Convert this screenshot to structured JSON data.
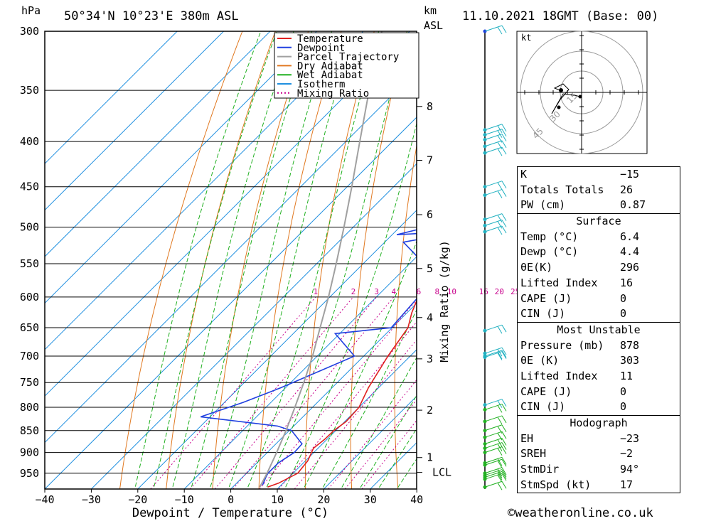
{
  "header": {
    "location": "50°34'N  10°23'E  380m  ASL",
    "datetime": "11.10.2021  18GMT  (Base: 00)",
    "left_unit": "hPa",
    "right_unit_top": "km",
    "right_unit_bottom": "ASL",
    "mixing_axis": "Mixing Ratio (g/kg)",
    "credit": "©weatheronline.co.uk"
  },
  "chart_data": {
    "type": "skewt",
    "xlabel": "Dewpoint / Temperature (°C)",
    "x_ticks": [
      -40,
      -30,
      -20,
      -10,
      0,
      10,
      20,
      30,
      40
    ],
    "x_tick_labels": [
      "−40",
      "−30",
      "−20",
      "−10",
      "0",
      "10",
      "20",
      "30",
      "40"
    ],
    "pressure_levels": [
      300,
      350,
      400,
      450,
      500,
      550,
      600,
      650,
      700,
      750,
      800,
      850,
      900,
      950
    ],
    "pressure_labels": [
      "300",
      "350",
      "400",
      "450",
      "500",
      "550",
      "600",
      "650",
      "700",
      "750",
      "800",
      "850",
      "900",
      "950"
    ],
    "height_km": [
      {
        "label": "8",
        "p": 365
      },
      {
        "label": "7",
        "p": 420
      },
      {
        "label": "6",
        "p": 484
      },
      {
        "label": "5",
        "p": 557
      },
      {
        "label": "4",
        "p": 633
      },
      {
        "label": "3",
        "p": 705
      },
      {
        "label": "2",
        "p": 806
      },
      {
        "label": "1",
        "p": 912
      },
      {
        "label": "LCL",
        "p": 948
      }
    ],
    "mixing_ratio_labels": [
      "1",
      "2",
      "3",
      "4",
      "6",
      "8",
      "10",
      "16",
      "20",
      "25"
    ],
    "legend": [
      {
        "name": "Temperature",
        "color": "#e02020",
        "dotted": false
      },
      {
        "name": "Dewpoint",
        "color": "#2040e0",
        "dotted": false
      },
      {
        "name": "Parcel Trajectory",
        "color": "#a0a0a0",
        "dotted": false
      },
      {
        "name": "Dry Adiabat",
        "color": "#e07820",
        "dotted": false
      },
      {
        "name": "Wet Adiabat",
        "color": "#20b020",
        "dotted": false
      },
      {
        "name": "Isotherm",
        "color": "#2090e0",
        "dotted": false
      },
      {
        "name": "Mixing Ratio",
        "color": "#c8008c",
        "dotted": true
      }
    ],
    "series": [
      {
        "name": "Temperature",
        "color": "#e02020",
        "points": [
          [
            985,
            7.5
          ],
          [
            975,
            9
          ],
          [
            950,
            11
          ],
          [
            920,
            10.5
          ],
          [
            890,
            9
          ],
          [
            870,
            9.5
          ],
          [
            850,
            9.6
          ],
          [
            830,
            10.3
          ],
          [
            800,
            10
          ],
          [
            760,
            7.8
          ],
          [
            700,
            5.2
          ],
          [
            650,
            3.4
          ],
          [
            625,
            1
          ],
          [
            600,
            -1
          ],
          [
            570,
            -2.4
          ],
          [
            550,
            -3.8
          ],
          [
            520,
            -5.5
          ],
          [
            500,
            -7.2
          ],
          [
            470,
            -9.3
          ],
          [
            450,
            -11.2
          ],
          [
            420,
            -14
          ],
          [
            400,
            -17
          ],
          [
            380,
            -18.5
          ],
          [
            370,
            -20.5
          ],
          [
            350,
            -23
          ],
          [
            330,
            -26.3
          ],
          [
            300,
            -31
          ]
        ]
      },
      {
        "name": "Dewpoint",
        "color": "#2040e0",
        "points": [
          [
            980,
            6
          ],
          [
            960,
            5
          ],
          [
            950,
            4.6
          ],
          [
            925,
            4.6
          ],
          [
            900,
            5.8
          ],
          [
            880,
            5.6
          ],
          [
            850,
            0.5
          ],
          [
            840,
            -3.5
          ],
          [
            820,
            -22
          ],
          [
            790,
            -16
          ],
          [
            760,
            -11
          ],
          [
            700,
            -2
          ],
          [
            660,
            -11
          ],
          [
            650,
            -0.2
          ],
          [
            600,
            -1
          ],
          [
            550,
            -6.9
          ],
          [
            520,
            -16
          ],
          [
            505,
            -5
          ],
          [
            510,
            -19
          ],
          [
            500,
            -14
          ],
          [
            470,
            -10
          ],
          [
            450,
            -11
          ],
          [
            400,
            -12
          ],
          [
            380,
            -22
          ],
          [
            370,
            -20
          ],
          [
            355,
            -28
          ],
          [
            345,
            -28.5
          ],
          [
            300,
            -31.5
          ]
        ]
      },
      {
        "name": "Parcel Trajectory",
        "color": "#a0a0a0",
        "points": [
          [
            985,
            5.8
          ],
          [
            950,
            4.4
          ],
          [
            900,
            2
          ],
          [
            850,
            -0.7
          ],
          [
            800,
            -3.8
          ],
          [
            750,
            -7.2
          ],
          [
            700,
            -11
          ],
          [
            650,
            -15.5
          ],
          [
            600,
            -20.3
          ],
          [
            550,
            -25.8
          ],
          [
            500,
            -32
          ],
          [
            450,
            -39
          ],
          [
            400,
            -47
          ],
          [
            350,
            -56
          ],
          [
            300,
            -66
          ]
        ]
      }
    ],
    "wind_p": [
      300,
      388,
      393,
      398,
      405,
      412,
      450,
      460,
      490,
      498,
      506,
      655,
      695,
      700,
      702,
      795,
      805,
      830,
      850,
      865,
      880,
      890,
      900,
      925,
      930,
      950,
      955,
      960,
      965,
      985
    ]
  },
  "hodograph": {
    "unit": "kt",
    "rings": [
      "15",
      "30",
      "45"
    ]
  },
  "stats": {
    "indices": [
      {
        "k": "K",
        "v": "−15"
      },
      {
        "k": "Totals Totals",
        "v": "26"
      },
      {
        "k": "PW (cm)",
        "v": "0.87"
      }
    ],
    "surface_title": "Surface",
    "surface": [
      {
        "k": "Temp (°C)",
        "v": "6.4"
      },
      {
        "k": "Dewp (°C)",
        "v": "4.4"
      },
      {
        "k": "θE(K)",
        "v": "296"
      },
      {
        "k": "Lifted Index",
        "v": "16"
      },
      {
        "k": "CAPE (J)",
        "v": "0"
      },
      {
        "k": "CIN (J)",
        "v": "0"
      }
    ],
    "mu_title": "Most Unstable",
    "mu": [
      {
        "k": "Pressure (mb)",
        "v": "878"
      },
      {
        "k": "θE (K)",
        "v": "303"
      },
      {
        "k": "Lifted Index",
        "v": "11"
      },
      {
        "k": "CAPE (J)",
        "v": "0"
      },
      {
        "k": "CIN (J)",
        "v": "0"
      }
    ],
    "hodo_title": "Hodograph",
    "hodo": [
      {
        "k": "EH",
        "v": "−23"
      },
      {
        "k": "SREH",
        "v": "−2"
      },
      {
        "k": "StmDir",
        "v": "94°"
      },
      {
        "k": "StmSpd (kt)",
        "v": "17"
      }
    ]
  }
}
